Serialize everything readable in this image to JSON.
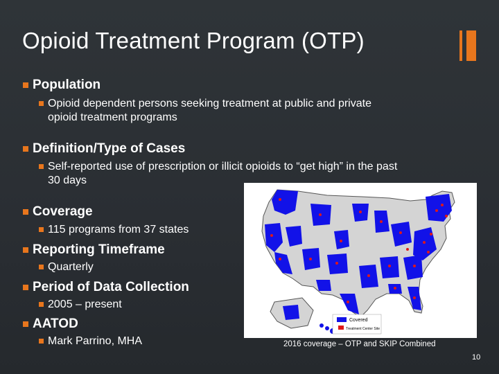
{
  "slide": {
    "title": "Opioid Treatment Program (OTP)",
    "page_number": "10",
    "accent_color": "#e8761d"
  },
  "sections": [
    {
      "heading": "Population",
      "sub": [
        "Opioid dependent persons seeking treatment at public and private",
        "opioid treatment programs"
      ]
    },
    {
      "heading": "Definition/Type of Cases",
      "sub": [
        "Self-reported use of prescription or illicit opioids to “get high” in the past",
        "30 days"
      ]
    },
    {
      "heading": "Coverage",
      "sub": [
        "115 programs from 37 states"
      ]
    },
    {
      "heading": "Reporting Timeframe",
      "sub": [
        "Quarterly"
      ]
    },
    {
      "heading": "Period of Data Collection",
      "sub": [
        "2005 – present"
      ]
    },
    {
      "heading": "AATOD",
      "sub": [
        "Mark Parrino, MHA"
      ]
    }
  ],
  "map": {
    "legend": [
      "Covered",
      "Treatment Center Site"
    ],
    "caption": "2016 coverage – OTP and SKIP Combined",
    "covered_color": "#1212e8",
    "uncovered_color": "#d4d4d4",
    "site_color": "#e01818"
  }
}
